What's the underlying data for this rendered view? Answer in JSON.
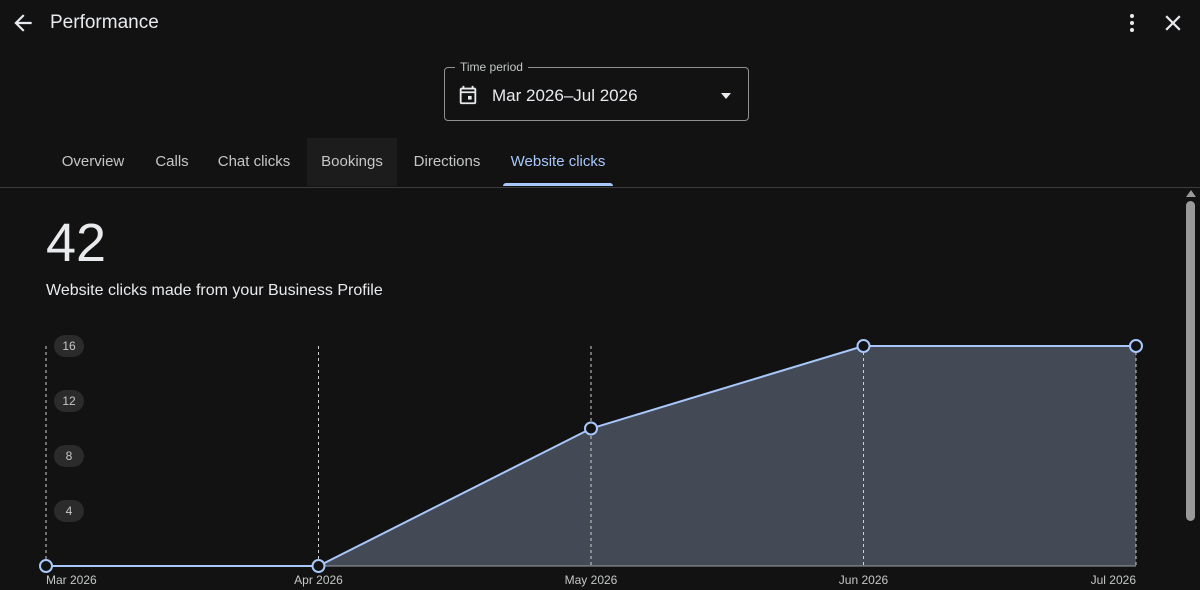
{
  "header": {
    "title": "Performance",
    "back_icon": "arrow-back-icon",
    "more_icon": "more-vert-icon",
    "close_icon": "close-icon"
  },
  "time_period": {
    "label": "Time period",
    "value": "Mar 2026–Jul 2026",
    "icon": "calendar-icon"
  },
  "tabs": [
    {
      "label": "Overview"
    },
    {
      "label": "Calls"
    },
    {
      "label": "Chat clicks"
    },
    {
      "label": "Bookings"
    },
    {
      "label": "Directions"
    },
    {
      "label": "Website clicks",
      "active": true
    }
  ],
  "summary": {
    "value": "42",
    "description": "Website clicks made from your Business Profile"
  },
  "colors": {
    "accent": "#a8c7fa",
    "area_fill": "#444a55",
    "background": "#121212"
  },
  "chart_data": {
    "type": "area",
    "categories": [
      "Mar 2026",
      "Apr 2026",
      "May 2026",
      "Jun 2026",
      "Jul 2026"
    ],
    "values": [
      0,
      0,
      10,
      16,
      16
    ],
    "y_ticks": [
      "4",
      "8",
      "12",
      "16"
    ],
    "ylim": [
      0,
      16
    ],
    "grid": "vertical-dashed"
  }
}
